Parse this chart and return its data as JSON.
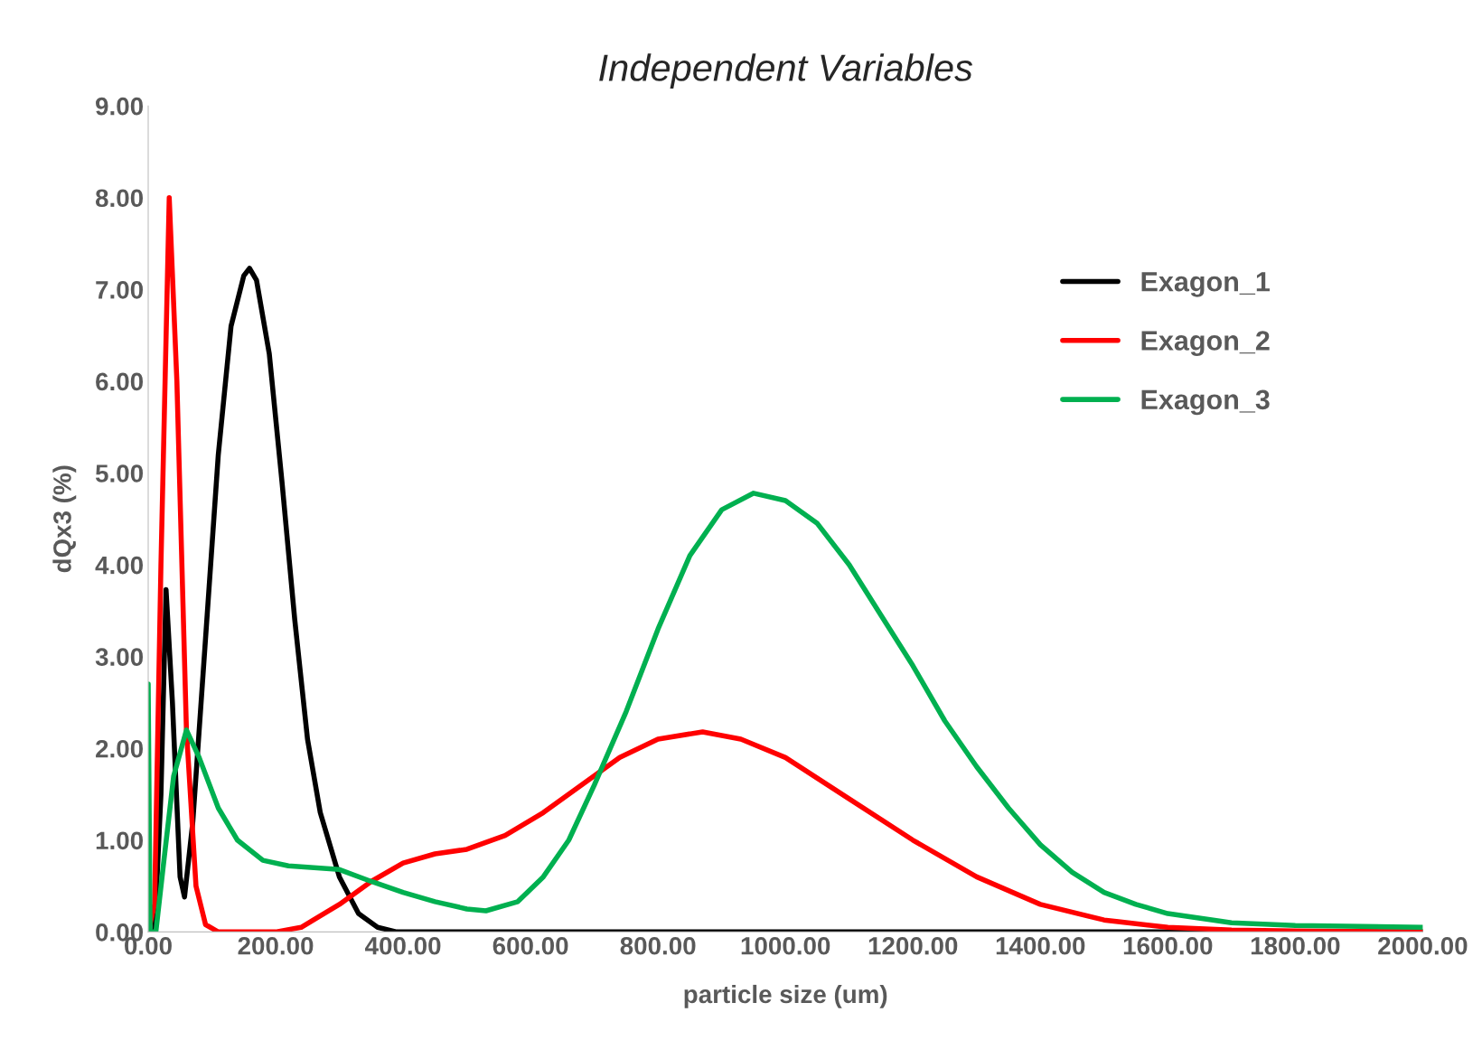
{
  "chart_data": {
    "type": "line",
    "title": "Independent Variables",
    "xlabel": "particle size (um)",
    "ylabel": "dQx3 (%)",
    "xlim": [
      0,
      2000
    ],
    "ylim": [
      0,
      9
    ],
    "xticks": [
      {
        "value": 0,
        "label": "0.00"
      },
      {
        "value": 200,
        "label": "200.00"
      },
      {
        "value": 400,
        "label": "400.00"
      },
      {
        "value": 600,
        "label": "600.00"
      },
      {
        "value": 800,
        "label": "800.00"
      },
      {
        "value": 1000,
        "label": "1000.00"
      },
      {
        "value": 1200,
        "label": "1200.00"
      },
      {
        "value": 1400,
        "label": "1400.00"
      },
      {
        "value": 1600,
        "label": "1600.00"
      },
      {
        "value": 1800,
        "label": "1800.00"
      },
      {
        "value": 2000,
        "label": "2000.00"
      }
    ],
    "yticks": [
      {
        "value": 0,
        "label": "0.00"
      },
      {
        "value": 1,
        "label": "1.00"
      },
      {
        "value": 2,
        "label": "2.00"
      },
      {
        "value": 3,
        "label": "3.00"
      },
      {
        "value": 4,
        "label": "4.00"
      },
      {
        "value": 5,
        "label": "5.00"
      },
      {
        "value": 6,
        "label": "6.00"
      },
      {
        "value": 7,
        "label": "7.00"
      },
      {
        "value": 8,
        "label": "8.00"
      },
      {
        "value": 9,
        "label": "9.00"
      }
    ],
    "grid": false,
    "legend": "top right",
    "marker": "none",
    "line_style": "solid",
    "series": [
      {
        "name": "Exagon_1",
        "color": "#000000",
        "x": [
          0,
          10,
          20,
          28,
          38,
          50,
          57,
          70,
          90,
          110,
          130,
          150,
          159,
          170,
          190,
          210,
          230,
          250,
          270,
          300,
          330,
          360,
          390,
          2000
        ],
        "values": [
          0,
          0,
          1.5,
          3.73,
          2.5,
          0.6,
          0.38,
          1.2,
          3.2,
          5.2,
          6.6,
          7.15,
          7.23,
          7.1,
          6.3,
          4.9,
          3.4,
          2.1,
          1.3,
          0.6,
          0.2,
          0.05,
          0,
          0
        ]
      },
      {
        "name": "Exagon_2",
        "color": "#ff0000",
        "x": [
          0,
          10,
          20,
          33,
          45,
          60,
          75,
          90,
          110,
          200,
          240,
          300,
          350,
          400,
          450,
          500,
          560,
          620,
          680,
          740,
          800,
          870,
          930,
          1000,
          1100,
          1200,
          1300,
          1400,
          1500,
          1600,
          1700,
          1800,
          2000
        ],
        "values": [
          0,
          0.3,
          4,
          8.0,
          6,
          2.2,
          0.5,
          0.08,
          0,
          0,
          0.05,
          0.3,
          0.55,
          0.75,
          0.85,
          0.9,
          1.05,
          1.3,
          1.6,
          1.9,
          2.1,
          2.18,
          2.1,
          1.9,
          1.45,
          1.0,
          0.6,
          0.3,
          0.13,
          0.05,
          0.02,
          0.01,
          0
        ]
      },
      {
        "name": "Exagon_3",
        "color": "#00b050",
        "x": [
          0,
          3,
          12,
          25,
          40,
          60,
          80,
          110,
          140,
          180,
          220,
          300,
          350,
          400,
          450,
          500,
          530,
          580,
          620,
          660,
          700,
          750,
          800,
          850,
          900,
          950,
          1000,
          1050,
          1100,
          1150,
          1200,
          1250,
          1300,
          1350,
          1400,
          1450,
          1500,
          1550,
          1600,
          1700,
          1800,
          2000
        ],
        "values": [
          2.7,
          0,
          0,
          0.8,
          1.7,
          2.2,
          1.9,
          1.35,
          1.0,
          0.78,
          0.72,
          0.68,
          0.55,
          0.43,
          0.33,
          0.25,
          0.23,
          0.33,
          0.6,
          1.0,
          1.6,
          2.4,
          3.3,
          4.1,
          4.6,
          4.78,
          4.7,
          4.45,
          4.0,
          3.45,
          2.9,
          2.3,
          1.8,
          1.35,
          0.95,
          0.65,
          0.43,
          0.3,
          0.2,
          0.1,
          0.07,
          0.05
        ]
      }
    ]
  }
}
